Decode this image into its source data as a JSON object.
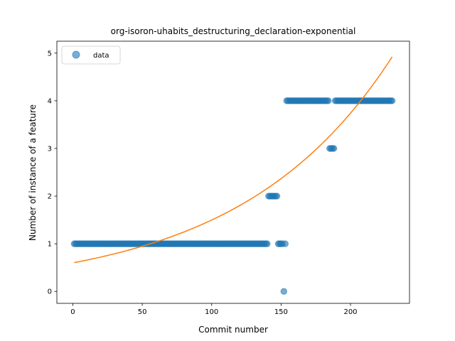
{
  "chart_data": {
    "type": "scatter",
    "title": "org-isoron-uhabits_destructuring_declaration-exponential",
    "xlabel": "Commit number",
    "ylabel": "Number of instance of a feature",
    "xlim": [
      -11.5,
      242.5
    ],
    "ylim": [
      -0.25,
      5.25
    ],
    "xticks": [
      0,
      50,
      100,
      150,
      200
    ],
    "yticks": [
      0,
      1,
      2,
      3,
      4,
      5
    ],
    "grid": false,
    "legend": {
      "location": "upper-left",
      "entries": [
        "data"
      ]
    },
    "colors": {
      "data": "#1f77b4",
      "fit": "#ff7f0e"
    },
    "series": [
      {
        "name": "data",
        "kind": "scatter",
        "segments": [
          {
            "x_from": 1,
            "x_to": 140,
            "y": 1
          },
          {
            "x_from": 141,
            "x_to": 147,
            "y": 2
          },
          {
            "x_from": 148,
            "x_to": 151,
            "y": 1
          },
          {
            "x_from": 152,
            "x_to": 152,
            "y": 0
          },
          {
            "x_from": 153,
            "x_to": 153,
            "y": 1
          },
          {
            "x_from": 154,
            "x_to": 184,
            "y": 4
          },
          {
            "x_from": 185,
            "x_to": 188,
            "y": 3
          },
          {
            "x_from": 189,
            "x_to": 230,
            "y": 4
          }
        ]
      },
      {
        "kind": "line",
        "model": "exponential",
        "a": 0.6,
        "b": 0.00915,
        "x_range": [
          1,
          230
        ]
      }
    ]
  }
}
